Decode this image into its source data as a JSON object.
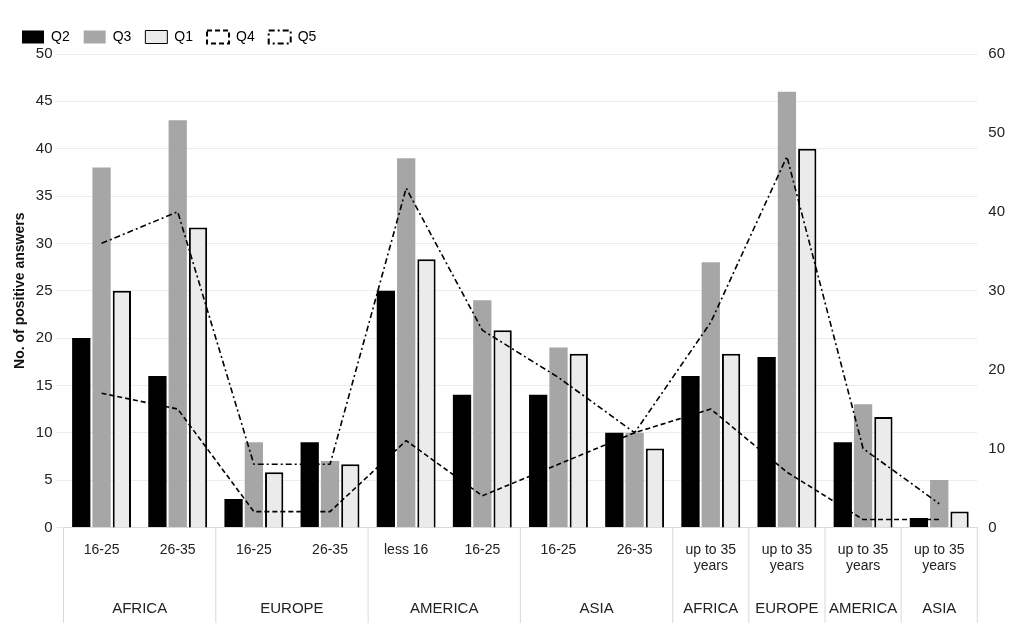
{
  "chart_data": {
    "type": "bar",
    "ylabel": "No. of positive answers",
    "categories": [
      "16-25",
      "26-35",
      "16-25",
      "26-35",
      "less 16",
      "16-25",
      "16-25",
      "26-35",
      "up to 35 years",
      "up to 35 years",
      "up to 35 years",
      "up to 35 years"
    ],
    "annotations": [
      "AFRICA",
      "EUROPE",
      "AMERICA",
      "ASIA",
      "AFRICA",
      "EUROPE",
      "AMERICA",
      "ASIA"
    ],
    "series": [
      {
        "name": "Q2",
        "color": "#000000",
        "values": [
          20,
          16,
          3,
          9,
          25,
          14,
          14,
          10,
          16,
          18,
          9,
          1
        ]
      },
      {
        "name": "Q3",
        "color": "#a6a6a6",
        "values": [
          38,
          43,
          9,
          7,
          39,
          24,
          19,
          10,
          28,
          46,
          13,
          5
        ]
      },
      {
        "name": "Q1",
        "axis": "y2",
        "color": "#ebebeb",
        "values": [
          30,
          38,
          7,
          8,
          34,
          25,
          22,
          10,
          22,
          48,
          14,
          2
        ]
      },
      {
        "name": "Q4",
        "type": "line",
        "axis": "y2",
        "color": "#000000",
        "line_style": "dashed",
        "values": [
          17,
          15,
          2,
          2,
          11,
          4,
          8,
          12,
          15,
          7,
          1,
          1
        ]
      },
      {
        "name": "Q5",
        "type": "line",
        "axis": "y2",
        "color": "#000000",
        "line_style": "dotted",
        "values": [
          36,
          40,
          8,
          8,
          43,
          25,
          19,
          12,
          26,
          47,
          10,
          3
        ]
      }
    ],
    "ylim": [
      0,
      50
    ],
    "yticks": [
      0,
      5,
      10,
      15,
      20,
      25,
      30,
      35,
      40,
      45,
      50
    ],
    "y2lim": [
      0,
      60
    ],
    "y2ticks": [
      0,
      10,
      20,
      30,
      40,
      50,
      60
    ],
    "grid": "y",
    "legend": "top left",
    "marker": "none"
  }
}
